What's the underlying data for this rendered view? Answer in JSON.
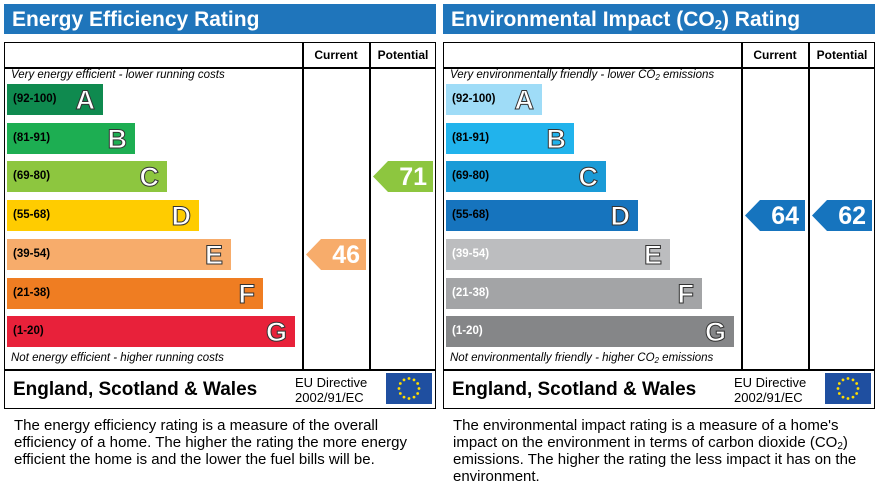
{
  "chart_data": [
    {
      "type": "bar",
      "title": "Energy Efficiency Rating",
      "columns": [
        "Current",
        "Potential"
      ],
      "top_caption": "Very energy efficient - lower running costs",
      "bottom_caption": "Not energy efficient - higher running costs",
      "bands": [
        {
          "letter": "A",
          "range": "(92-100)",
          "color": "#0f8a4f"
        },
        {
          "letter": "B",
          "range": "(81-91)",
          "color": "#1dae52"
        },
        {
          "letter": "C",
          "range": "(69-80)",
          "color": "#8dc63f"
        },
        {
          "letter": "D",
          "range": "(55-68)",
          "color": "#ffcc00"
        },
        {
          "letter": "E",
          "range": "(39-54)",
          "color": "#f7ac6b"
        },
        {
          "letter": "F",
          "range": "(21-38)",
          "color": "#ef7d22"
        },
        {
          "letter": "G",
          "range": "(1-20)",
          "color": "#e8213a"
        }
      ],
      "current": {
        "value": 46,
        "band": "E",
        "color": "#f7ac6b"
      },
      "potential": {
        "value": 71,
        "band": "C",
        "color": "#8dc63f"
      },
      "footer_region": "England, Scotland & Wales",
      "directive_line1": "EU Directive",
      "directive_line2": "2002/91/EC",
      "description": "The energy efficiency rating is a measure of the overall efficiency of a home. The higher the rating the more energy efficient the home is and the lower the fuel bills will be."
    },
    {
      "type": "bar",
      "title": "Environmental Impact (CO",
      "title_sub": "2",
      "title_end": ") Rating",
      "columns": [
        "Current",
        "Potential"
      ],
      "top_caption": "Very environmentally friendly - lower CO",
      "top_caption_sub": "2",
      "top_caption_end": " emissions",
      "bottom_caption": "Not environmentally friendly - higher CO",
      "bottom_caption_sub": "2",
      "bottom_caption_end": " emissions",
      "bands": [
        {
          "letter": "A",
          "range": "(92-100)",
          "color": "#9fdcf7"
        },
        {
          "letter": "B",
          "range": "(81-91)",
          "color": "#21b3ec"
        },
        {
          "letter": "C",
          "range": "(69-80)",
          "color": "#1a9bd7"
        },
        {
          "letter": "D",
          "range": "(55-68)",
          "color": "#1674be"
        },
        {
          "letter": "E",
          "range": "(39-54)",
          "color": "#bcbdbf"
        },
        {
          "letter": "F",
          "range": "(21-38)",
          "color": "#a3a4a6"
        },
        {
          "letter": "G",
          "range": "(1-20)",
          "color": "#858688"
        }
      ],
      "current": {
        "value": 64,
        "band": "D",
        "color": "#1674be"
      },
      "potential": {
        "value": 62,
        "band": "D",
        "color": "#1674be"
      },
      "footer_region": "England, Scotland & Wales",
      "directive_line1": "EU Directive",
      "directive_line2": "2002/91/EC",
      "description_a": "The environmental impact rating is a measure of a home's impact on the environment in terms of carbon dioxide (CO",
      "description_sub": "2",
      "description_b": ") emissions. The higher the rating the less impact it has on the environment."
    }
  ]
}
